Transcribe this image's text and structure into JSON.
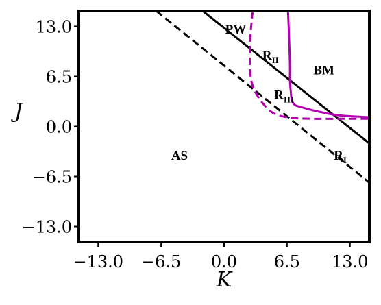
{
  "chart_data": {
    "type": "line",
    "title": "",
    "xlabel": "K",
    "ylabel": "J",
    "xlim": [
      -15.0,
      15.0
    ],
    "ylim": [
      -15.0,
      15.0
    ],
    "xticks": [
      -13.0,
      -6.5,
      0.0,
      6.5,
      13.0
    ],
    "yticks": [
      -13.0,
      -6.5,
      0.0,
      6.5,
      13.0
    ],
    "xtick_labels": [
      "−13.0",
      "−6.5",
      "0.0",
      "6.5",
      "13.0"
    ],
    "ytick_labels": [
      "−13.0",
      "−6.5",
      "0.0",
      "6.5",
      "13.0"
    ],
    "grid": false,
    "colors": {
      "black": "#000000",
      "magenta": "#b300b3"
    },
    "series": [
      {
        "style": "solid",
        "color": "#000000",
        "x": [
          -2.2,
          15.0
        ],
        "y": [
          15.0,
          -2.2
        ]
      },
      {
        "style": "dashed",
        "color": "#000000",
        "x": [
          -7.0,
          15.0
        ],
        "y": [
          15.0,
          -7.3
        ]
      },
      {
        "style": "solid",
        "color": "#b300b3",
        "x": [
          6.6,
          6.7,
          6.8,
          6.8,
          6.9,
          7.0,
          7.3,
          8.0,
          9.5,
          11.5,
          13.5,
          15.0
        ],
        "y": [
          15.0,
          12.0,
          8.0,
          6.0,
          4.4,
          3.4,
          2.8,
          2.5,
          2.0,
          1.5,
          1.3,
          1.2
        ]
      },
      {
        "style": "dashed",
        "color": "#b300b3",
        "x": [
          2.95,
          2.7,
          2.65,
          2.7,
          2.9,
          3.3,
          4.0,
          5.0,
          6.5,
          9.0,
          12.0,
          15.0
        ],
        "y": [
          15.0,
          11.5,
          9.0,
          7.0,
          5.5,
          4.3,
          3.0,
          1.8,
          1.2,
          1.0,
          1.0,
          1.0
        ]
      }
    ],
    "annotations": [
      {
        "id": "pw",
        "text": "PW",
        "sub": "",
        "x": 1.2,
        "y": 12.7
      },
      {
        "id": "r2",
        "text": "R",
        "sub": "II",
        "x": 4.8,
        "y": 9.3
      },
      {
        "id": "bm",
        "text": "BM",
        "sub": "",
        "x": 10.3,
        "y": 7.4
      },
      {
        "id": "r3",
        "text": "R",
        "sub": "III",
        "x": 6.2,
        "y": 4.2
      },
      {
        "id": "as",
        "text": "AS",
        "sub": "",
        "x": -4.6,
        "y": -3.7
      },
      {
        "id": "r1",
        "text": "R",
        "sub": "I",
        "x": 12.0,
        "y": -3.7
      }
    ]
  }
}
